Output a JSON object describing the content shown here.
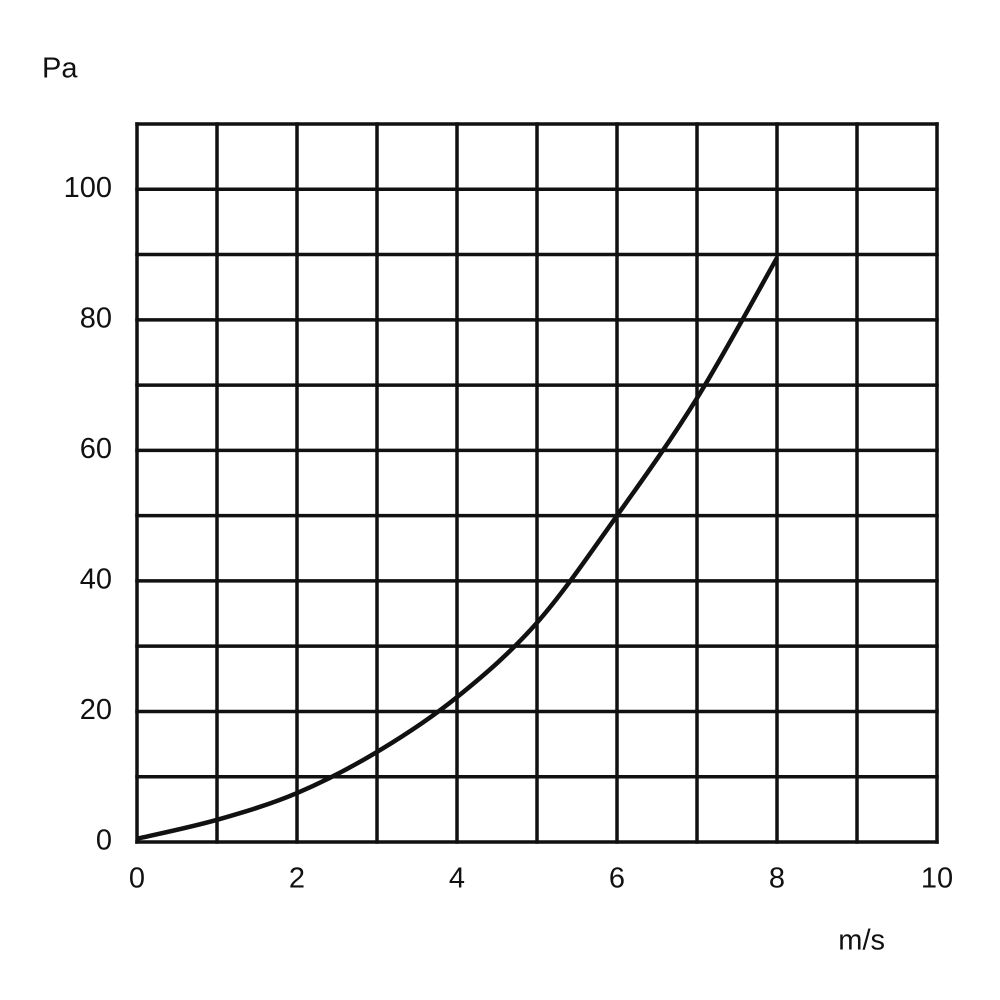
{
  "chart_data": {
    "type": "line",
    "x_label": "m/s",
    "y_label": "Pa",
    "x": [
      0,
      1,
      2,
      3,
      4,
      5,
      6,
      7,
      8
    ],
    "series": [
      {
        "color": "#111111",
        "values": [
          0.5,
          3.4,
          7.5,
          13.8,
          22.2,
          33.6,
          50,
          68,
          89.5
        ]
      }
    ],
    "xlim": [
      0,
      10
    ],
    "ylim": [
      0,
      110
    ],
    "xticks": [
      0,
      2,
      4,
      6,
      8,
      10
    ],
    "yticks": [
      0,
      20,
      40,
      60,
      80,
      100
    ],
    "x_minor_ticks": [
      1,
      3,
      5,
      7,
      9
    ],
    "y_minor_ticks": [
      10,
      30,
      50,
      70,
      90,
      110
    ],
    "grid": true
  }
}
